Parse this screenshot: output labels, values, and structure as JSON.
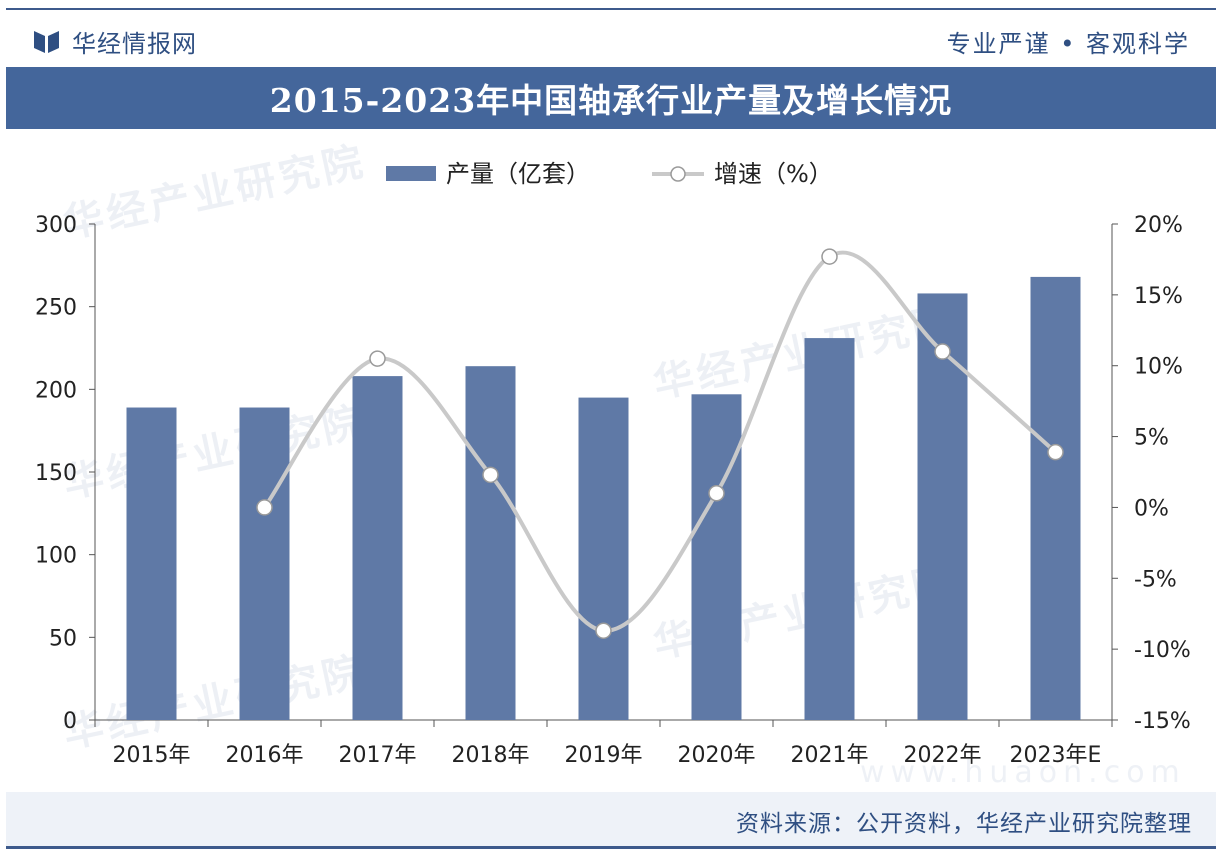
{
  "header": {
    "brand": "华经情报网",
    "slogan": "专业严谨 • 客观科学"
  },
  "watermark": {
    "text": "华经产业研究院",
    "url": "www.huaon.com"
  },
  "footer": {
    "source": "资料来源：公开资料，华经产业研究院整理"
  },
  "colors": {
    "bar": "#5f79a6",
    "line": "#c9c9c9",
    "marker_fill": "#ffffff",
    "marker_stroke": "#9a9a9a",
    "title_bar": "#44669b",
    "axis": "#555555"
  },
  "chart_data": {
    "type": "bar",
    "title": "2015-2023年中国轴承行业产量及增长情况",
    "categories": [
      "2015年",
      "2016年",
      "2017年",
      "2018年",
      "2019年",
      "2020年",
      "2021年",
      "2022年",
      "2023年E"
    ],
    "series": [
      {
        "name": "产量（亿套）",
        "type": "bar",
        "axis": "left",
        "values": [
          189,
          189,
          208,
          214,
          195,
          197,
          231,
          258,
          268
        ]
      },
      {
        "name": "增速（%）",
        "type": "line",
        "axis": "right",
        "values": [
          null,
          0.0,
          10.5,
          2.3,
          -8.7,
          1.0,
          17.7,
          11.0,
          3.9
        ]
      }
    ],
    "legend": {
      "position": "top-center"
    },
    "y_left": {
      "min": 0,
      "max": 300,
      "ticks": [
        0,
        50,
        100,
        150,
        200,
        250,
        300
      ]
    },
    "y_right": {
      "min": -15,
      "max": 20,
      "ticks": [
        -15,
        -10,
        -5,
        0,
        5,
        10,
        15,
        20
      ],
      "tick_labels": [
        "-15%",
        "-10%",
        "-5%",
        "0%",
        "5%",
        "10%",
        "15%",
        "20%"
      ]
    },
    "grid": false
  }
}
